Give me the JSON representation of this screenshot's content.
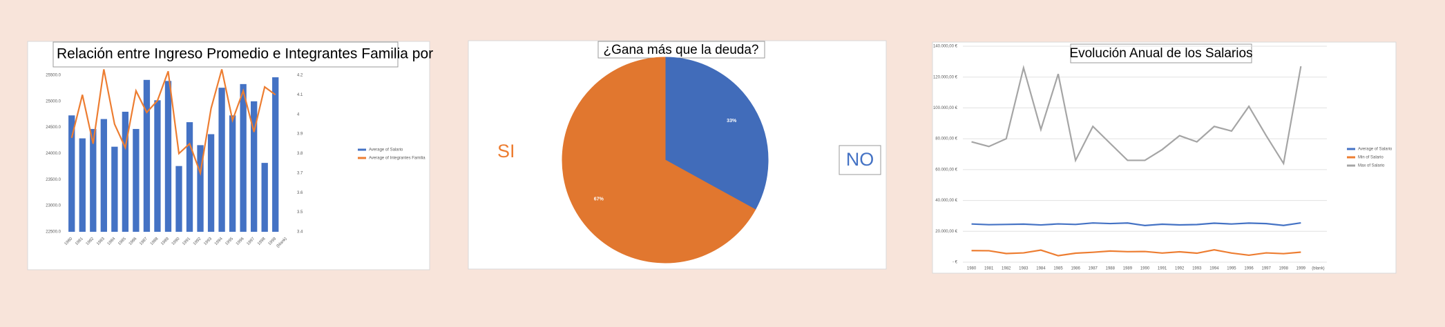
{
  "chart_data": [
    {
      "type": "bar",
      "title": "Relación entre Ingreso Promedio e Integrantes Familia por",
      "categories": [
        "1980",
        "1981",
        "1982",
        "1983",
        "1984",
        "1985",
        "1986",
        "1987",
        "1988",
        "1989",
        "1990",
        "1991",
        "1992",
        "1993",
        "1994",
        "1995",
        "1996",
        "1997",
        "1998",
        "1999",
        "(blank)"
      ],
      "series": [
        {
          "name": "Average of Salario",
          "color": "#4472c4",
          "values": [
            24730,
            24290,
            24470,
            24660,
            24130,
            24800,
            24470,
            25410,
            25020,
            25390,
            23760,
            24600,
            24160,
            24370,
            25260,
            24730,
            25330,
            25000,
            23820,
            25460,
            null
          ]
        },
        {
          "name": "Average of Integrantes Familia",
          "color": "#ed7d31",
          "type": "line",
          "axis": "y2",
          "values": [
            3.88,
            4.1,
            3.85,
            4.23,
            3.95,
            3.83,
            4.12,
            4.01,
            4.07,
            4.22,
            3.8,
            3.85,
            3.7,
            4.03,
            4.23,
            3.97,
            4.12,
            3.91,
            4.14,
            4.1,
            null
          ]
        }
      ],
      "ylim": [
        22500,
        25500
      ],
      "yticks": [
        {
          "value": 22500,
          "label": "22500.0"
        },
        {
          "value": 23000,
          "label": "23000.0"
        },
        {
          "value": 23500,
          "label": "23500.0"
        },
        {
          "value": 24000,
          "label": "24000.0"
        },
        {
          "value": 24500,
          "label": "24500.0"
        },
        {
          "value": 25000,
          "label": "25000.0"
        },
        {
          "value": 25500,
          "label": "25500.0"
        }
      ],
      "y2lim": [
        3.4,
        4.2
      ],
      "y2ticks": [
        3.4,
        3.5,
        3.6,
        3.7,
        3.8,
        3.9,
        {
          "value": 4,
          "label": "4"
        },
        4.1,
        4.2
      ],
      "legend": "right"
    },
    {
      "type": "pie",
      "title": "¿Gana más que la deuda?",
      "categories": [
        "NO",
        "SI"
      ],
      "values": [
        33,
        67
      ],
      "value_labels": [
        "33%",
        "67%"
      ],
      "colors": [
        "#4472c4",
        "#ed7d31"
      ]
    },
    {
      "type": "line",
      "title": "Evolución Anual de los Salarios",
      "categories": [
        "1980",
        "1981",
        "1982",
        "1983",
        "1984",
        "1985",
        "1986",
        "1987",
        "1988",
        "1989",
        "1990",
        "1991",
        "1992",
        "1993",
        "1994",
        "1995",
        "1996",
        "1997",
        "1998",
        "1999",
        "(blank)"
      ],
      "series": [
        {
          "name": "Average of Salario",
          "color": "#4472c4",
          "values": [
            24730,
            24290,
            24470,
            24660,
            24130,
            24800,
            24470,
            25410,
            25020,
            25390,
            23760,
            24600,
            24160,
            24370,
            25260,
            24730,
            25330,
            25000,
            23820,
            25460,
            null
          ]
        },
        {
          "name": "Min of Salario",
          "color": "#ed7d31",
          "values": [
            7500,
            7400,
            5600,
            6000,
            7800,
            4200,
            5800,
            6400,
            7200,
            6800,
            6900,
            5900,
            6700,
            5800,
            8000,
            5900,
            4500,
            6000,
            5500,
            6500,
            null
          ]
        },
        {
          "name": "Max of Salario",
          "color": "#a5a5a5",
          "values": [
            78000,
            75000,
            80000,
            126000,
            86000,
            122000,
            66000,
            88000,
            77000,
            66000,
            66000,
            73000,
            82000,
            78000,
            88000,
            85000,
            101000,
            82000,
            64000,
            127000,
            null
          ]
        }
      ],
      "ylim": [
        0,
        140000
      ],
      "yticks": [
        {
          "value": 0,
          "label": "- €"
        },
        {
          "value": 20000,
          "label": "20.000,00 €"
        },
        {
          "value": 40000,
          "label": "40.000,00 €"
        },
        {
          "value": 60000,
          "label": "60.000,00 €"
        },
        {
          "value": 80000,
          "label": "80.000,00 €"
        },
        {
          "value": 100000,
          "label": "100.000,00 €"
        },
        {
          "value": 120000,
          "label": "120.000,00 €"
        },
        {
          "value": 140000,
          "label": "140.000,00 €"
        }
      ],
      "grid": true,
      "legend": "right"
    }
  ]
}
